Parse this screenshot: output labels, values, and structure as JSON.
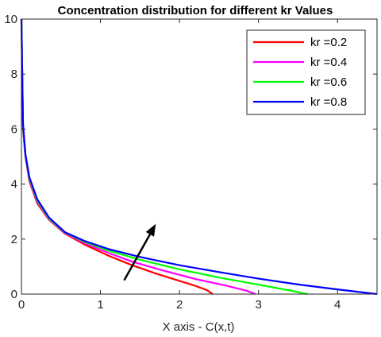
{
  "chart_data": {
    "type": "line",
    "title": "Concentration distribution for different kr Values",
    "xlabel": "X axis - C(x,t)",
    "ylabel": "",
    "xlim": [
      0,
      4.5
    ],
    "ylim": [
      0,
      10
    ],
    "xticks": [
      "0",
      "1",
      "2",
      "3",
      "4"
    ],
    "yticks": [
      "0",
      "2",
      "4",
      "6",
      "8",
      "10"
    ],
    "grid": false,
    "legend_position": "top-right",
    "series": [
      {
        "name": "kr =0.2",
        "color": "#ff0000",
        "points": [
          [
            0,
            10
          ],
          [
            0.02,
            6.0
          ],
          [
            0.05,
            5.0
          ],
          [
            0.1,
            4.1
          ],
          [
            0.2,
            3.3
          ],
          [
            0.35,
            2.7
          ],
          [
            0.55,
            2.2
          ],
          [
            0.8,
            1.8
          ],
          [
            1.1,
            1.4
          ],
          [
            1.4,
            1.05
          ],
          [
            1.7,
            0.75
          ],
          [
            2.0,
            0.48
          ],
          [
            2.2,
            0.3
          ],
          [
            2.35,
            0.14
          ],
          [
            2.42,
            0
          ]
        ]
      },
      {
        "name": "kr =0.4",
        "color": "#ff00ff",
        "points": [
          [
            0,
            10
          ],
          [
            0.02,
            6.0
          ],
          [
            0.05,
            5.0
          ],
          [
            0.1,
            4.15
          ],
          [
            0.2,
            3.35
          ],
          [
            0.35,
            2.72
          ],
          [
            0.55,
            2.22
          ],
          [
            0.8,
            1.85
          ],
          [
            1.1,
            1.5
          ],
          [
            1.4,
            1.18
          ],
          [
            1.8,
            0.85
          ],
          [
            2.2,
            0.55
          ],
          [
            2.6,
            0.3
          ],
          [
            2.85,
            0.12
          ],
          [
            2.96,
            0
          ]
        ]
      },
      {
        "name": "kr =0.6",
        "color": "#00ff00",
        "points": [
          [
            0,
            10
          ],
          [
            0.02,
            6.1
          ],
          [
            0.05,
            5.05
          ],
          [
            0.1,
            4.2
          ],
          [
            0.2,
            3.4
          ],
          [
            0.35,
            2.75
          ],
          [
            0.55,
            2.24
          ],
          [
            0.8,
            1.9
          ],
          [
            1.1,
            1.58
          ],
          [
            1.5,
            1.25
          ],
          [
            2.0,
            0.9
          ],
          [
            2.5,
            0.6
          ],
          [
            3.0,
            0.34
          ],
          [
            3.4,
            0.13
          ],
          [
            3.62,
            0
          ]
        ]
      },
      {
        "name": "kr =0.8",
        "color": "#0000ff",
        "points": [
          [
            0,
            10
          ],
          [
            0.02,
            6.2
          ],
          [
            0.05,
            5.1
          ],
          [
            0.1,
            4.25
          ],
          [
            0.2,
            3.45
          ],
          [
            0.35,
            2.78
          ],
          [
            0.55,
            2.25
          ],
          [
            0.8,
            1.93
          ],
          [
            1.1,
            1.64
          ],
          [
            1.5,
            1.35
          ],
          [
            2.0,
            1.05
          ],
          [
            2.5,
            0.8
          ],
          [
            3.0,
            0.56
          ],
          [
            3.5,
            0.35
          ],
          [
            4.0,
            0.17
          ],
          [
            4.5,
            0
          ]
        ]
      }
    ],
    "annotations": [
      {
        "type": "arrow",
        "from": [
          1.3,
          0.5
        ],
        "to": [
          1.7,
          2.55
        ],
        "color": "#000000"
      }
    ]
  }
}
